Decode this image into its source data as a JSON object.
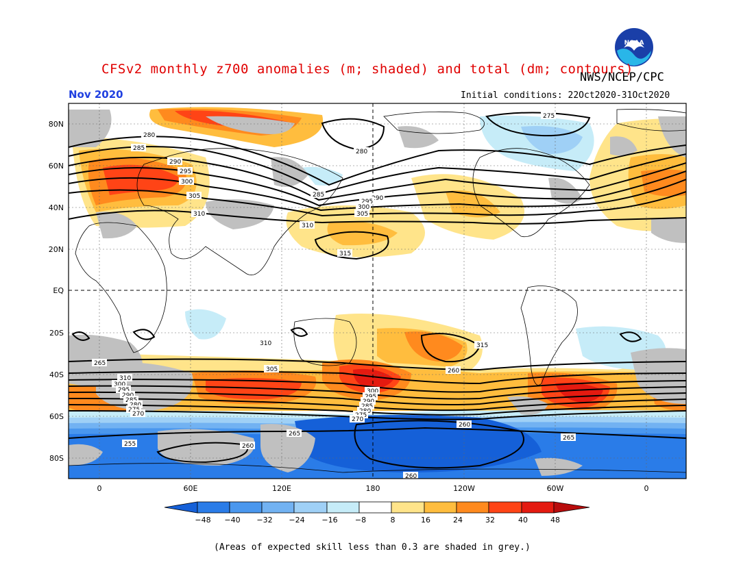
{
  "header": {
    "title": "CFSv2 monthly z700 anomalies (m; shaded) and total (dm; contours)",
    "agency": "NWS/NCEP/CPC",
    "valid_month": "Nov 2020",
    "initial_conditions": "Initial conditions: 22Oct2020-31Oct2020",
    "logo_text": "NOAA"
  },
  "axes": {
    "lat_labels": [
      "80N",
      "60N",
      "40N",
      "20N",
      "EQ",
      "20S",
      "40S",
      "60S",
      "80S"
    ],
    "lon_labels": [
      "0",
      "60E",
      "120E",
      "180",
      "120W",
      "60W",
      "0"
    ]
  },
  "colorbar": {
    "ticks": [
      "−48",
      "−40",
      "−32",
      "−24",
      "−16",
      "−8",
      "8",
      "16",
      "24",
      "32",
      "40",
      "48"
    ],
    "colors": [
      "#1560d8",
      "#2a7ce8",
      "#4a97ee",
      "#72b2f2",
      "#9fd0f6",
      "#c6ecf8",
      "#ffffff",
      "#ffe48a",
      "#ffbd3e",
      "#ff8a1e",
      "#ff4416",
      "#e41a10",
      "#b80c0c"
    ]
  },
  "contour_labels": [
    "275",
    "280",
    "285",
    "290",
    "295",
    "300",
    "305",
    "310",
    "315",
    "280",
    "285",
    "290",
    "295",
    "300",
    "305",
    "310",
    "315",
    "310",
    "305",
    "300",
    "295",
    "290",
    "285",
    "280",
    "275",
    "270",
    "265",
    "310",
    "300",
    "295",
    "290",
    "285",
    "280",
    "275",
    "270",
    "265",
    "260",
    "255",
    "260",
    "265",
    "260",
    "260"
  ],
  "footnote": "(Areas of expected skill less than 0.3 are shaded in grey.)"
}
